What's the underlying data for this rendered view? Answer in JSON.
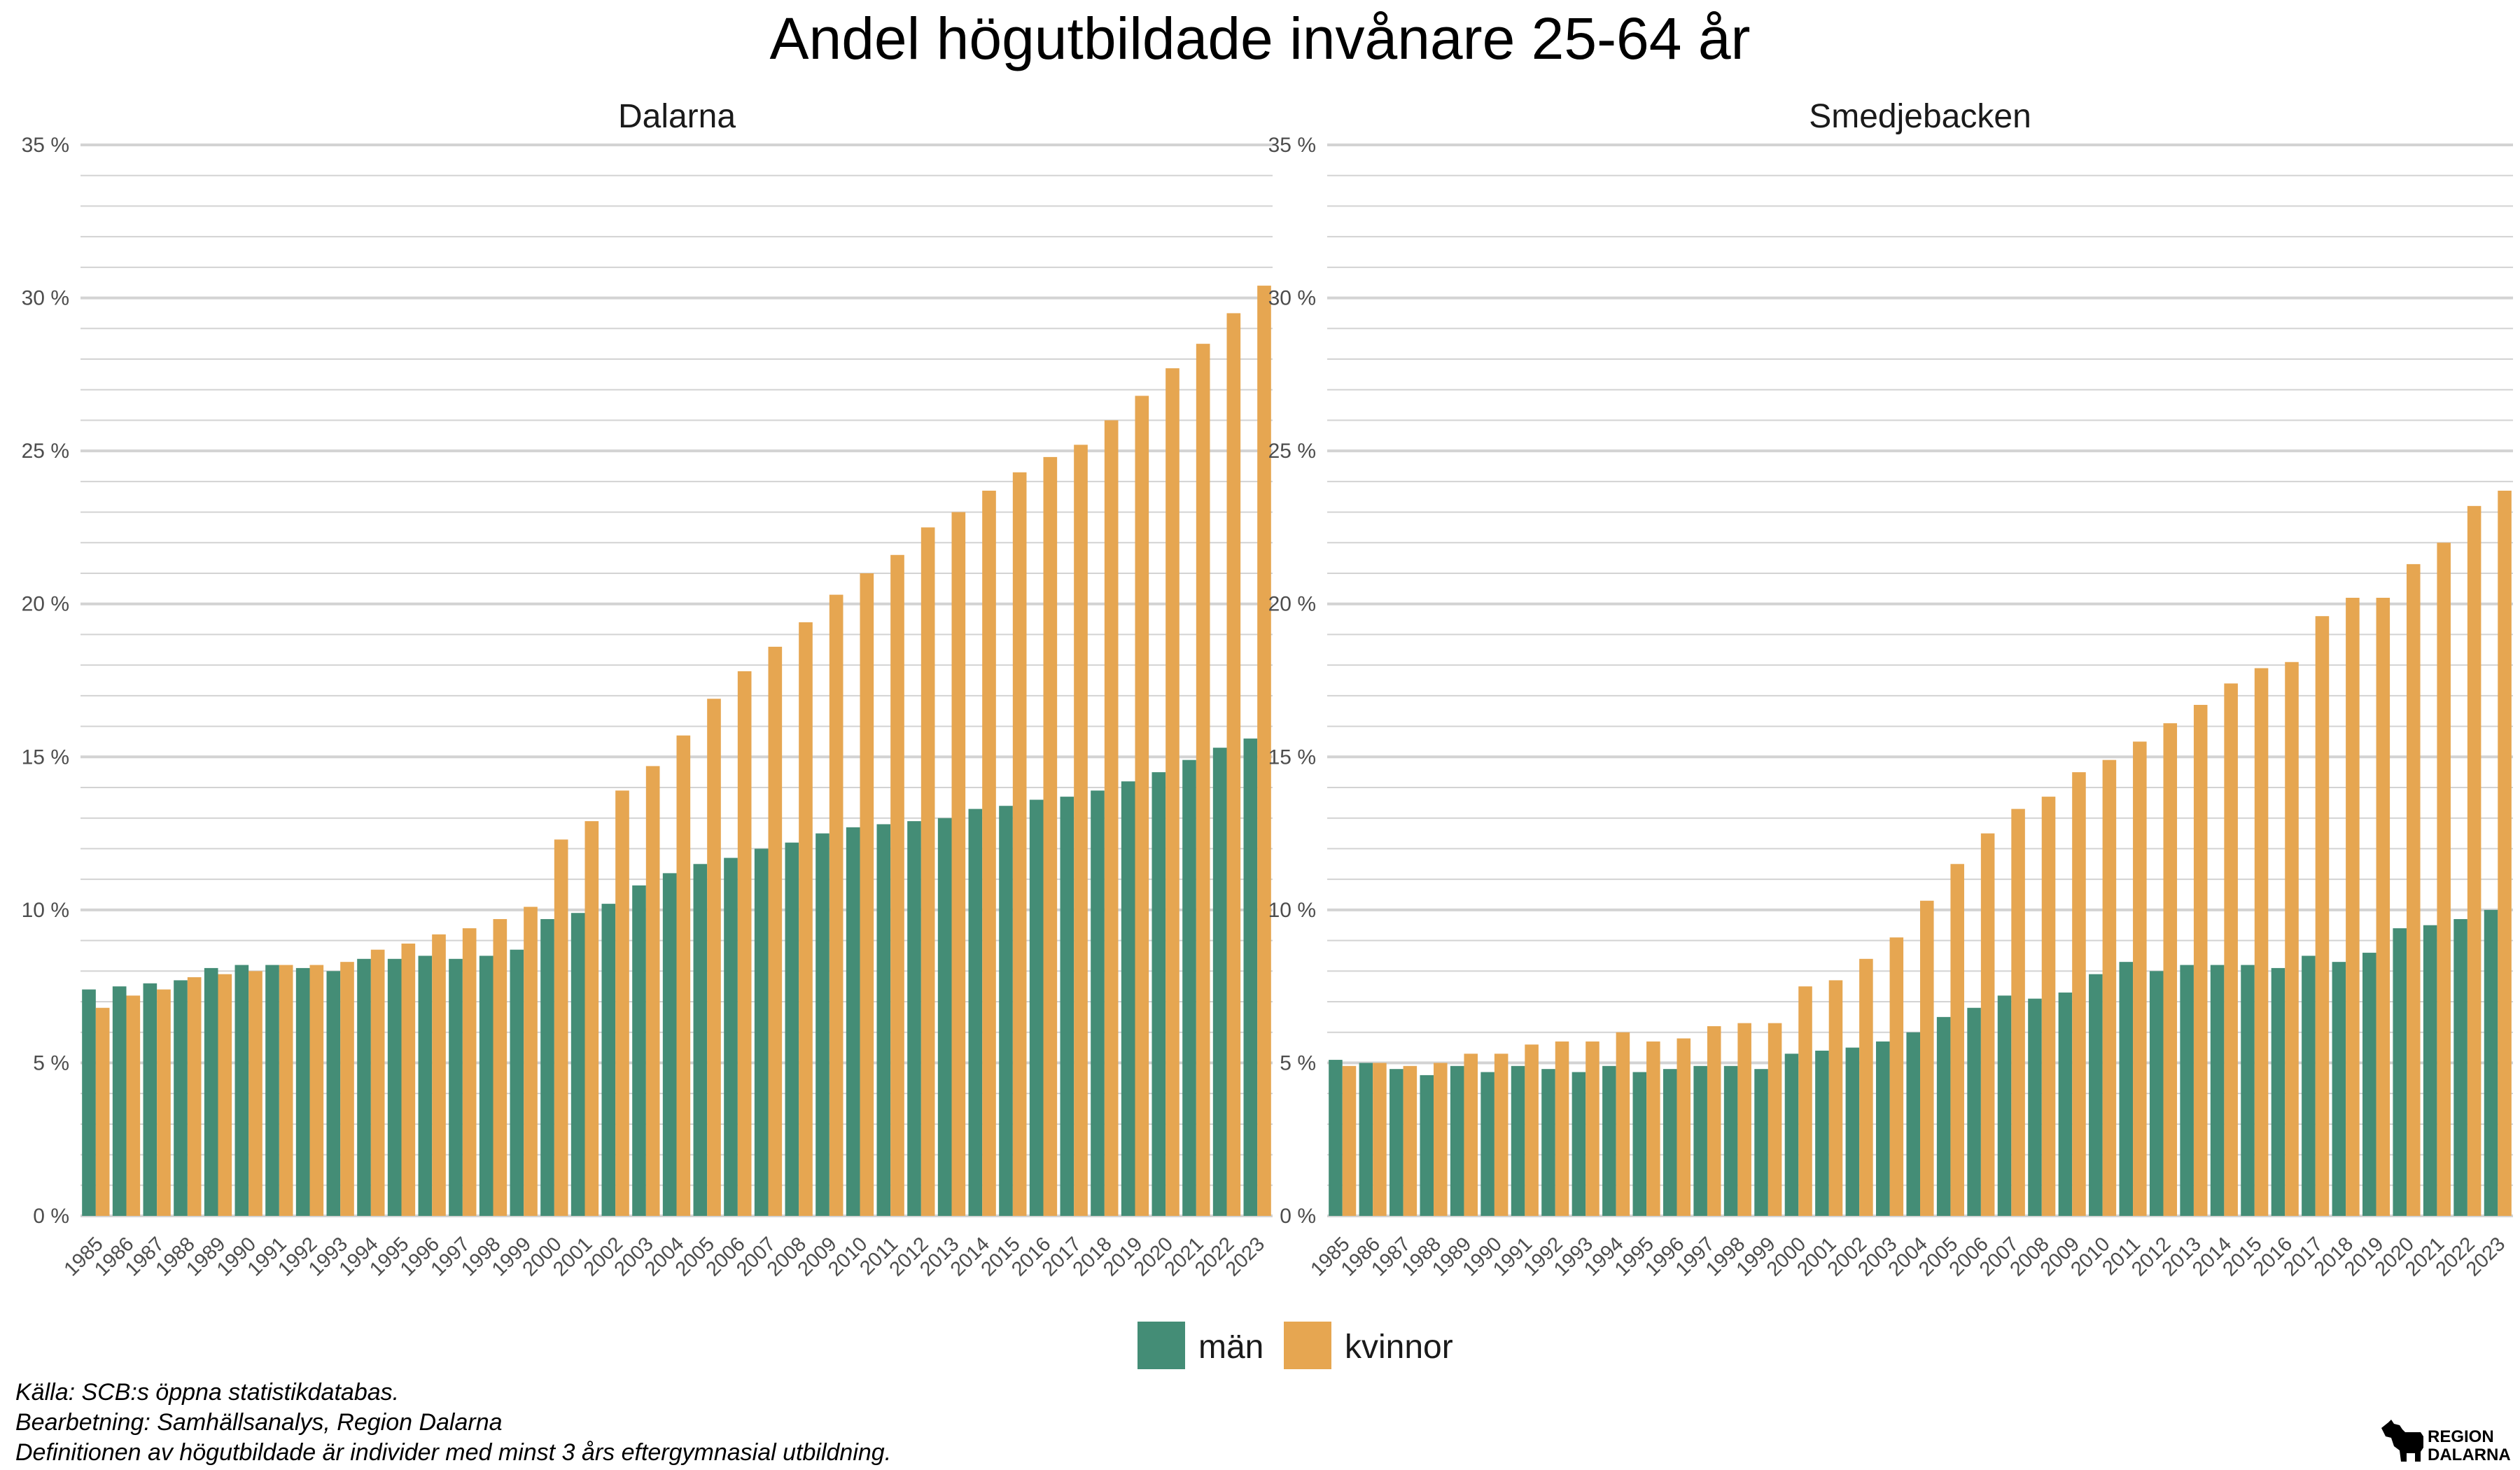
{
  "title": "Andel högutbildade invånare 25-64 år",
  "colors": {
    "man": "#448d76",
    "kvinnor": "#e6a651",
    "grid": "#d3d3d3"
  },
  "legend": [
    {
      "key": "man",
      "label": "män"
    },
    {
      "key": "kvinnor",
      "label": "kvinnor"
    }
  ],
  "caption": [
    "Källa: SCB:s öppna statistikdatabas.",
    "Bearbetning: Samhällsanalys, Region Dalarna",
    "Definitionen av högutbildade är individer med minst 3 års eftergymnasial utbildning."
  ],
  "logo": {
    "line1": "REGION",
    "line2": "DALARNA",
    "icon": "dala-horse-icon"
  },
  "chart_data": [
    {
      "type": "bar",
      "panel": "Dalarna",
      "categories": [
        "1985",
        "1986",
        "1987",
        "1988",
        "1989",
        "1990",
        "1991",
        "1992",
        "1993",
        "1994",
        "1995",
        "1996",
        "1997",
        "1998",
        "1999",
        "2000",
        "2001",
        "2002",
        "2003",
        "2004",
        "2005",
        "2006",
        "2007",
        "2008",
        "2009",
        "2010",
        "2011",
        "2012",
        "2013",
        "2014",
        "2015",
        "2016",
        "2017",
        "2018",
        "2019",
        "2020",
        "2021",
        "2022",
        "2023"
      ],
      "series": [
        {
          "name": "män",
          "values": [
            7.4,
            7.5,
            7.6,
            7.7,
            8.1,
            8.2,
            8.2,
            8.1,
            8.0,
            8.4,
            8.4,
            8.5,
            8.4,
            8.5,
            8.7,
            9.7,
            9.9,
            10.2,
            10.8,
            11.2,
            11.5,
            11.7,
            12.0,
            12.2,
            12.5,
            12.7,
            12.8,
            12.9,
            13.0,
            13.3,
            13.4,
            13.6,
            13.7,
            13.9,
            14.2,
            14.5,
            14.9,
            15.3,
            15.6
          ]
        },
        {
          "name": "kvinnor",
          "values": [
            6.8,
            7.2,
            7.4,
            7.8,
            7.9,
            8.0,
            8.2,
            8.2,
            8.3,
            8.7,
            8.9,
            9.2,
            9.4,
            9.7,
            10.1,
            12.3,
            12.9,
            13.9,
            14.7,
            15.7,
            16.9,
            17.8,
            18.6,
            19.4,
            20.3,
            21.0,
            21.6,
            22.5,
            23.0,
            23.7,
            24.3,
            24.8,
            25.2,
            26.0,
            26.8,
            27.7,
            28.5,
            29.5,
            30.4
          ]
        }
      ],
      "ylim": [
        0,
        35
      ],
      "yticks": [
        0,
        5,
        10,
        15,
        20,
        25,
        30,
        35
      ],
      "ytick_suffix": " %",
      "grid": true,
      "legend": "bottom"
    },
    {
      "type": "bar",
      "panel": "Smedjebacken",
      "categories": [
        "1985",
        "1986",
        "1987",
        "1988",
        "1989",
        "1990",
        "1991",
        "1992",
        "1993",
        "1994",
        "1995",
        "1996",
        "1997",
        "1998",
        "1999",
        "2000",
        "2001",
        "2002",
        "2003",
        "2004",
        "2005",
        "2006",
        "2007",
        "2008",
        "2009",
        "2010",
        "2011",
        "2012",
        "2013",
        "2014",
        "2015",
        "2016",
        "2017",
        "2018",
        "2019",
        "2020",
        "2021",
        "2022",
        "2023"
      ],
      "series": [
        {
          "name": "män",
          "values": [
            5.1,
            5.0,
            4.8,
            4.6,
            4.9,
            4.7,
            4.9,
            4.8,
            4.7,
            4.9,
            4.7,
            4.8,
            4.9,
            4.9,
            4.8,
            5.3,
            5.4,
            5.5,
            5.7,
            6.0,
            6.5,
            6.8,
            7.2,
            7.1,
            7.3,
            7.9,
            8.3,
            8.0,
            8.2,
            8.2,
            8.2,
            8.1,
            8.5,
            8.3,
            8.6,
            9.4,
            9.5,
            9.7,
            10.0
          ]
        },
        {
          "name": "kvinnor",
          "values": [
            4.9,
            5.0,
            4.9,
            5.0,
            5.3,
            5.3,
            5.6,
            5.7,
            5.7,
            6.0,
            5.7,
            5.8,
            6.2,
            6.3,
            6.3,
            7.5,
            7.7,
            8.4,
            9.1,
            10.3,
            11.5,
            12.5,
            13.3,
            13.7,
            14.5,
            14.9,
            15.5,
            16.1,
            16.7,
            17.4,
            17.9,
            18.1,
            19.6,
            20.2,
            20.2,
            21.3,
            22.0,
            23.2,
            23.7
          ]
        }
      ],
      "ylim": [
        0,
        35
      ],
      "yticks": [
        0,
        5,
        10,
        15,
        20,
        25,
        30,
        35
      ],
      "ytick_suffix": " %",
      "grid": true,
      "legend": "bottom"
    }
  ]
}
